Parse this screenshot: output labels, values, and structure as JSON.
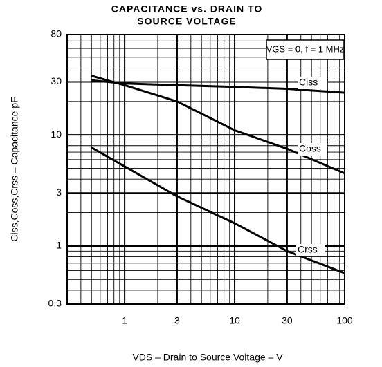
{
  "chart_data": {
    "type": "line",
    "title": [
      "CAPACITANCE vs. DRAIN TO",
      "SOURCE VOLTAGE"
    ],
    "x_label": "VDS – Drain to Source Voltage – V",
    "y_label": "Ciss,Coss,Crss – Capacitance  pF",
    "annotation": "VGS = 0, f = 1 MHz",
    "x": [
      0.5,
      1,
      3,
      10,
      30,
      100
    ],
    "series": [
      {
        "name": "Ciss",
        "color": "#000000",
        "values": [
          31,
          29,
          28,
          27,
          26,
          24
        ]
      },
      {
        "name": "Coss",
        "color": "#000000",
        "values": [
          34,
          28,
          20,
          11,
          7.5,
          4.5
        ]
      },
      {
        "name": "Crss",
        "color": "#000000",
        "values": [
          7.7,
          5.2,
          2.8,
          1.6,
          0.9,
          0.57
        ]
      }
    ],
    "xlim": [
      0.3,
      100
    ],
    "ylim": [
      0.3,
      80
    ],
    "xticks": [
      1,
      3,
      10,
      30,
      100
    ],
    "yticks": [
      0.3,
      1,
      3,
      10,
      30,
      80
    ],
    "log_x": true,
    "log_y": true,
    "grid": true,
    "minor_grid": true
  }
}
